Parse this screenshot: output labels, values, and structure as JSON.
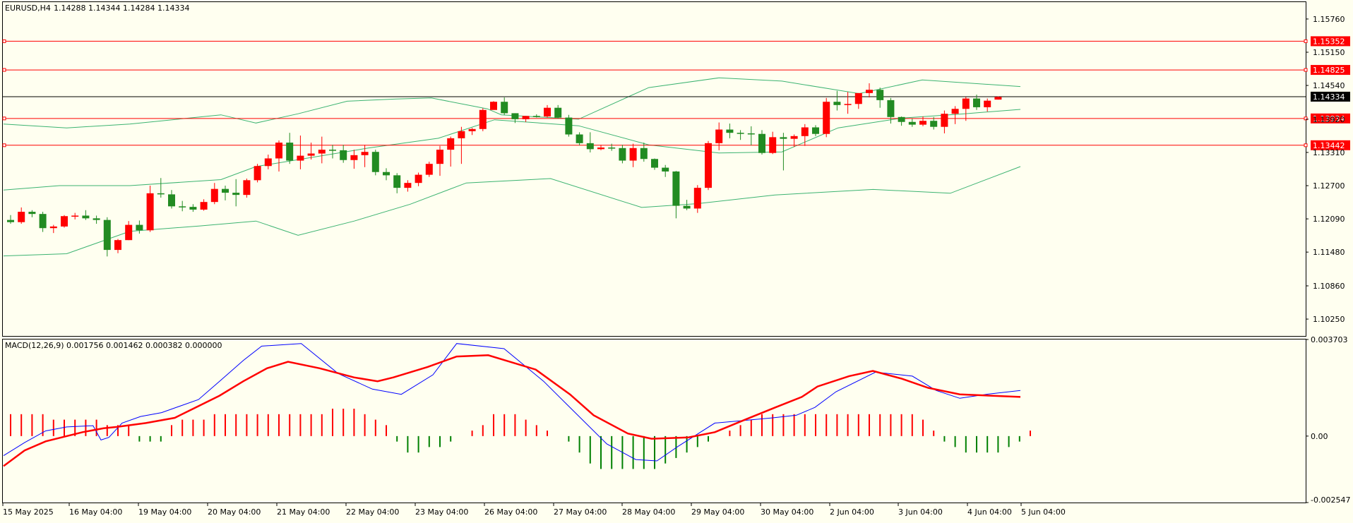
{
  "chart_data": [
    {
      "type": "candlestick",
      "title": "EURUSD,H4",
      "ohlc_readout": [
        "1.14288",
        "1.14344",
        "1.14284",
        "1.14334"
      ],
      "y_ticks": [
        "1.15760",
        "1.15150",
        "1.14540",
        "1.13920",
        "1.13310",
        "1.12700",
        "1.12090",
        "1.11480",
        "1.10860",
        "1.10250"
      ],
      "ylim": [
        1.0994,
        1.1607
      ],
      "x_ticks": [
        "15 May 2025",
        "16 May 04:00",
        "19 May 04:00",
        "20 May 04:00",
        "21 May 04:00",
        "22 May 04:00",
        "23 May 04:00",
        "26 May 04:00",
        "27 May 04:00",
        "28 May 04:00",
        "29 May 04:00",
        "30 May 04:00",
        "2 Jun 04:00",
        "3 Jun 04:00",
        "4 Jun 04:00",
        "5 Jun 04:00"
      ],
      "price_lines": [
        {
          "label": "1.15352",
          "value": 1.15352,
          "color": "#ff0000"
        },
        {
          "label": "1.14825",
          "value": 1.14825,
          "color": "#ff0000"
        },
        {
          "label": "1.13934",
          "value": 1.13934,
          "color": "#ff0000"
        },
        {
          "label": "1.13442",
          "value": 1.13442,
          "color": "#ff0000"
        }
      ],
      "current_price": {
        "label": "1.14334",
        "value": 1.14334,
        "color": "#000000"
      },
      "candles": [
        [
          1.1207,
          1.1216,
          1.12,
          1.1203
        ],
        [
          1.1203,
          1.123,
          1.12,
          1.1222
        ],
        [
          1.1222,
          1.1225,
          1.1212,
          1.1218
        ],
        [
          1.1218,
          1.1222,
          1.1185,
          1.1192
        ],
        [
          1.1192,
          1.1198,
          1.1183,
          1.1195
        ],
        [
          1.1195,
          1.1216,
          1.1193,
          1.1214
        ],
        [
          1.1214,
          1.122,
          1.1208,
          1.1215
        ],
        [
          1.1215,
          1.1225,
          1.1207,
          1.121
        ],
        [
          1.121,
          1.1215,
          1.12,
          1.1207
        ],
        [
          1.1207,
          1.1212,
          1.114,
          1.1152
        ],
        [
          1.1152,
          1.1172,
          1.1146,
          1.117
        ],
        [
          1.117,
          1.1205,
          1.117,
          1.1198
        ],
        [
          1.1198,
          1.1206,
          1.1182,
          1.1188
        ],
        [
          1.1188,
          1.127,
          1.1185,
          1.1256
        ],
        [
          1.1256,
          1.1284,
          1.1248,
          1.1254
        ],
        [
          1.1254,
          1.1262,
          1.1228,
          1.1232
        ],
        [
          1.1232,
          1.1242,
          1.1223,
          1.1231
        ],
        [
          1.1231,
          1.1236,
          1.1222,
          1.1226
        ],
        [
          1.1226,
          1.1245,
          1.1224,
          1.124
        ],
        [
          1.124,
          1.1275,
          1.1236,
          1.1264
        ],
        [
          1.1264,
          1.127,
          1.1243,
          1.1257
        ],
        [
          1.1257,
          1.1282,
          1.1232,
          1.1253
        ],
        [
          1.1253,
          1.1283,
          1.1248,
          1.128
        ],
        [
          1.128,
          1.131,
          1.1276,
          1.1306
        ],
        [
          1.1306,
          1.1327,
          1.13,
          1.132
        ],
        [
          1.132,
          1.1353,
          1.1296,
          1.1349
        ],
        [
          1.1349,
          1.1367,
          1.131,
          1.1316
        ],
        [
          1.1316,
          1.1362,
          1.13,
          1.1325
        ],
        [
          1.1325,
          1.1349,
          1.1318,
          1.1329
        ],
        [
          1.1329,
          1.136,
          1.1311,
          1.1336
        ],
        [
          1.1336,
          1.1345,
          1.132,
          1.1335
        ],
        [
          1.1335,
          1.1345,
          1.1312,
          1.1317
        ],
        [
          1.1317,
          1.1336,
          1.1301,
          1.1326
        ],
        [
          1.1326,
          1.1345,
          1.1304,
          1.1332
        ],
        [
          1.1332,
          1.1336,
          1.1289,
          1.1295
        ],
        [
          1.1295,
          1.1302,
          1.128,
          1.1289
        ],
        [
          1.1289,
          1.1293,
          1.1256,
          1.1266
        ],
        [
          1.1266,
          1.128,
          1.1259,
          1.1275
        ],
        [
          1.1275,
          1.1294,
          1.1269,
          1.129
        ],
        [
          1.129,
          1.1314,
          1.1286,
          1.131
        ],
        [
          1.131,
          1.1343,
          1.1288,
          1.1336
        ],
        [
          1.1336,
          1.136,
          1.1305,
          1.1357
        ],
        [
          1.1357,
          1.1378,
          1.131,
          1.137
        ],
        [
          1.137,
          1.1376,
          1.1363,
          1.1374
        ],
        [
          1.1374,
          1.1412,
          1.137,
          1.1409
        ],
        [
          1.1409,
          1.1425,
          1.1412,
          1.1424
        ],
        [
          1.1424,
          1.1432,
          1.14,
          1.1403
        ],
        [
          1.1403,
          1.1403,
          1.1385,
          1.1392
        ],
        [
          1.1392,
          1.1398,
          1.1387,
          1.1398
        ],
        [
          1.1398,
          1.1401,
          1.1395,
          1.1397
        ],
        [
          1.1397,
          1.1418,
          1.1395,
          1.1413
        ],
        [
          1.1413,
          1.1418,
          1.1393,
          1.1395
        ],
        [
          1.1395,
          1.14,
          1.136,
          1.1364
        ],
        [
          1.1364,
          1.1368,
          1.1344,
          1.1348
        ],
        [
          1.1348,
          1.1368,
          1.1331,
          1.1337
        ],
        [
          1.1337,
          1.1345,
          1.1335,
          1.134
        ],
        [
          1.134,
          1.1347,
          1.1334,
          1.1339
        ],
        [
          1.1339,
          1.1345,
          1.1311,
          1.1316
        ],
        [
          1.1316,
          1.1347,
          1.1304,
          1.1339
        ],
        [
          1.1339,
          1.1349,
          1.1314,
          1.1319
        ],
        [
          1.1319,
          1.132,
          1.1299,
          1.1303
        ],
        [
          1.1303,
          1.1308,
          1.1286,
          1.1296
        ],
        [
          1.1296,
          1.1297,
          1.121,
          1.1233
        ],
        [
          1.1233,
          1.1244,
          1.1225,
          1.1228
        ],
        [
          1.1228,
          1.1271,
          1.122,
          1.1266
        ],
        [
          1.1266,
          1.1352,
          1.1262,
          1.1348
        ],
        [
          1.1348,
          1.1386,
          1.1335,
          1.1373
        ],
        [
          1.1373,
          1.1384,
          1.1357,
          1.1367
        ],
        [
          1.1367,
          1.1372,
          1.1354,
          1.1366
        ],
        [
          1.1366,
          1.1379,
          1.1344,
          1.1365
        ],
        [
          1.1365,
          1.1372,
          1.1327,
          1.133
        ],
        [
          1.133,
          1.1369,
          1.1328,
          1.1359
        ],
        [
          1.1359,
          1.1367,
          1.1298,
          1.1356
        ],
        [
          1.1356,
          1.1364,
          1.1341,
          1.1361
        ],
        [
          1.1361,
          1.1383,
          1.1343,
          1.1377
        ],
        [
          1.1377,
          1.1381,
          1.1361,
          1.1365
        ],
        [
          1.1365,
          1.1431,
          1.1359,
          1.1424
        ],
        [
          1.1424,
          1.1444,
          1.1408,
          1.1418
        ],
        [
          1.1418,
          1.1442,
          1.1402,
          1.142
        ],
        [
          1.142,
          1.144,
          1.1411,
          1.144
        ],
        [
          1.144,
          1.1458,
          1.1432,
          1.1446
        ],
        [
          1.1446,
          1.145,
          1.1413,
          1.1427
        ],
        [
          1.1427,
          1.1431,
          1.1384,
          1.1396
        ],
        [
          1.1396,
          1.1397,
          1.138,
          1.1387
        ],
        [
          1.1387,
          1.1393,
          1.1378,
          1.1382
        ],
        [
          1.1382,
          1.1397,
          1.1379,
          1.1389
        ],
        [
          1.1389,
          1.1396,
          1.1373,
          1.1378
        ],
        [
          1.1378,
          1.1408,
          1.1366,
          1.1402
        ],
        [
          1.1402,
          1.1416,
          1.1383,
          1.1411
        ],
        [
          1.1411,
          1.1433,
          1.1389,
          1.143
        ],
        [
          1.143,
          1.1437,
          1.1409,
          1.1414
        ],
        [
          1.1414,
          1.143,
          1.1406,
          1.1426
        ],
        [
          1.1428,
          1.1434,
          1.1428,
          1.1433
        ]
      ],
      "bollinger": {
        "upper": [
          [
            0,
            1.1383
          ],
          [
            9,
            1.1376
          ],
          [
            18,
            1.1383
          ],
          [
            31,
            1.14
          ],
          [
            36,
            1.1385
          ],
          [
            42,
            1.1402
          ],
          [
            49,
            1.1425
          ],
          [
            56,
            1.1429
          ],
          [
            61,
            1.1431
          ],
          [
            69,
            1.1411
          ],
          [
            71,
            1.14
          ],
          [
            82,
            1.1392
          ],
          [
            92,
            1.145
          ],
          [
            102,
            1.1468
          ],
          [
            111,
            1.1462
          ],
          [
            122,
            1.1439
          ],
          [
            131,
            1.1464
          ],
          [
            145,
            1.1452
          ]
        ],
        "middle": [
          [
            0,
            1.1262
          ],
          [
            8,
            1.127
          ],
          [
            18,
            1.127
          ],
          [
            31,
            1.1281
          ],
          [
            36,
            1.1305
          ],
          [
            52,
            1.1339
          ],
          [
            62,
            1.1357
          ],
          [
            70,
            1.1391
          ],
          [
            82,
            1.138
          ],
          [
            92,
            1.1345
          ],
          [
            102,
            1.133
          ],
          [
            111,
            1.1332
          ],
          [
            119,
            1.1376
          ],
          [
            128,
            1.1394
          ],
          [
            137,
            1.1402
          ],
          [
            145,
            1.141
          ]
        ],
        "lower": [
          [
            0,
            1.1141
          ],
          [
            9,
            1.1145
          ],
          [
            18,
            1.1186
          ],
          [
            28,
            1.1196
          ],
          [
            36,
            1.1205
          ],
          [
            42,
            1.1179
          ],
          [
            50,
            1.1205
          ],
          [
            58,
            1.1236
          ],
          [
            66,
            1.1275
          ],
          [
            78,
            1.1283
          ],
          [
            91,
            1.123
          ],
          [
            99,
            1.1237
          ],
          [
            110,
            1.1253
          ],
          [
            124,
            1.1263
          ],
          [
            135,
            1.1256
          ],
          [
            145,
            1.1305
          ]
        ]
      }
    },
    {
      "type": "macd",
      "title": "MACD(12,26,9) 0.001756 0.001462 0.000382 0.000000",
      "y_ticks": [
        "0.003703",
        "0.00",
        "-0.002547"
      ],
      "ylim": [
        -0.002547,
        0.003703
      ],
      "histogram": [
        0.00084,
        0.00084,
        0.00084,
        0.00084,
        0.00063,
        0.00063,
        0.00063,
        0.00063,
        0.00063,
        0.00042,
        0.00042,
        0.00042,
        -0.00021,
        -0.00021,
        -0.00021,
        0.00042,
        0.00063,
        0.00063,
        0.00063,
        0.00084,
        0.00084,
        0.00084,
        0.00084,
        0.00084,
        0.00084,
        0.00084,
        0.00084,
        0.00084,
        0.00084,
        0.00084,
        0.00105,
        0.00105,
        0.00105,
        0.00084,
        0.00063,
        0.00042,
        -0.00021,
        -0.00063,
        -0.00063,
        -0.00042,
        -0.00042,
        -0.00021,
        0.0,
        0.00021,
        0.00042,
        0.00084,
        0.00084,
        0.00084,
        0.00063,
        0.00042,
        0.00021,
        0.0,
        -0.00021,
        -0.00063,
        -0.00105,
        -0.00126,
        -0.00126,
        -0.00126,
        -0.00126,
        -0.00126,
        -0.00126,
        -0.00105,
        -0.00084,
        -0.00063,
        -0.00042,
        -0.00021,
        0.0,
        0.00021,
        0.00042,
        0.00063,
        0.00084,
        0.00084,
        0.00084,
        0.00084,
        0.00084,
        0.00084,
        0.00084,
        0.00084,
        0.00084,
        0.00084,
        0.00084,
        0.00084,
        0.00084,
        0.00084,
        0.00084,
        0.00063,
        0.00021,
        -0.00021,
        -0.00042,
        -0.00063,
        -0.00063,
        -0.00063,
        -0.00063,
        -0.00042,
        -0.00021,
        0.00021
      ],
      "macd_line": [
        [
          0,
          -0.00075
        ],
        [
          8,
          -0.00025
        ],
        [
          16,
          0.0002
        ],
        [
          24,
          0.00035
        ],
        [
          34,
          0.0004
        ],
        [
          37,
          -0.00015
        ],
        [
          40,
          -5e-05
        ],
        [
          45,
          0.0005
        ],
        [
          52,
          0.00075
        ],
        [
          60,
          0.0009
        ],
        [
          74,
          0.0014
        ],
        [
          82,
          0.0021
        ],
        [
          91,
          0.0029
        ],
        [
          98,
          0.00345
        ],
        [
          113,
          0.00355
        ],
        [
          127,
          0.0024
        ],
        [
          140,
          0.0018
        ],
        [
          151,
          0.0016
        ],
        [
          163,
          0.00235
        ],
        [
          172,
          0.00355
        ],
        [
          190,
          0.00335
        ],
        [
          205,
          0.0021
        ],
        [
          214,
          0.0012
        ],
        [
          229,
          -0.0003
        ],
        [
          240,
          -0.0009
        ],
        [
          248,
          -0.00095
        ],
        [
          256,
          -0.0004
        ],
        [
          270,
          0.0005
        ],
        [
          281,
          0.0006
        ],
        [
          292,
          0.0007
        ],
        [
          301,
          0.0008
        ],
        [
          308,
          0.0011
        ],
        [
          316,
          0.0017
        ],
        [
          331,
          0.00245
        ],
        [
          345,
          0.0023
        ],
        [
          354,
          0.00175
        ],
        [
          363,
          0.00145
        ],
        [
          373,
          0.0016
        ],
        [
          386,
          0.00175
        ]
      ],
      "signal_line": [
        [
          0,
          -0.00115
        ],
        [
          8,
          -0.00055
        ],
        [
          16,
          -0.0002
        ],
        [
          30,
          0.00015
        ],
        [
          38,
          0.0003
        ],
        [
          43,
          0.00035
        ],
        [
          54,
          0.0005
        ],
        [
          65,
          0.0007
        ],
        [
          73,
          0.0011
        ],
        [
          82,
          0.00155
        ],
        [
          91,
          0.0021
        ],
        [
          100,
          0.0026
        ],
        [
          108,
          0.00285
        ],
        [
          120,
          0.0026
        ],
        [
          133,
          0.00225
        ],
        [
          142,
          0.0021
        ],
        [
          148,
          0.00225
        ],
        [
          161,
          0.00265
        ],
        [
          172,
          0.00305
        ],
        [
          184,
          0.0031
        ],
        [
          202,
          0.00255
        ],
        [
          215,
          0.0016
        ],
        [
          224,
          0.0008
        ],
        [
          237,
          0.0001
        ],
        [
          246,
          -0.0001
        ],
        [
          260,
          -5e-05
        ],
        [
          270,
          0.00015
        ],
        [
          282,
          0.00065
        ],
        [
          293,
          0.0011
        ],
        [
          303,
          0.0015
        ],
        [
          309,
          0.0019
        ],
        [
          321,
          0.0023
        ],
        [
          330,
          0.0025
        ],
        [
          341,
          0.0022
        ],
        [
          351,
          0.00185
        ],
        [
          363,
          0.0016
        ],
        [
          386,
          0.0015
        ]
      ]
    }
  ]
}
